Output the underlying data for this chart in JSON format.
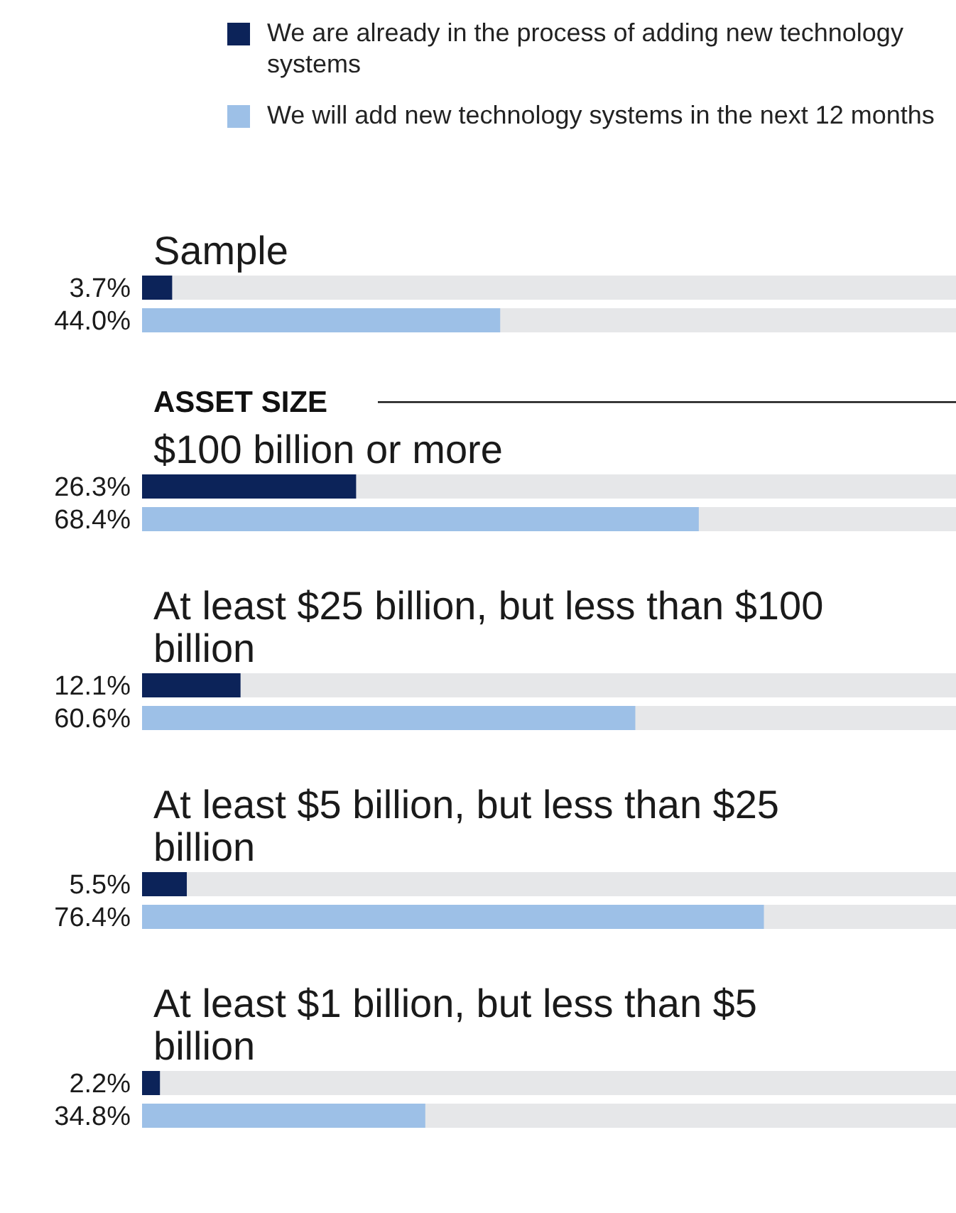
{
  "chart_data": {
    "type": "bar",
    "orientation": "horizontal",
    "categories": [
      "Sample",
      "$100 billion or more",
      "At least $25 billion, but less than $100 billion",
      "At least $5 billion, but less than $25 billion",
      "At least $1 billion, but less than $5 billion"
    ],
    "series": [
      {
        "name": "We are already in the process of adding new technology systems",
        "color": "#0c2359",
        "values": [
          3.7,
          26.3,
          12.1,
          5.5,
          2.2
        ],
        "value_labels": [
          "3.7%",
          "26.3%",
          "12.1%",
          "5.5%",
          "2.2%"
        ]
      },
      {
        "name": "We will add new technology systems in the next 12 months",
        "color": "#9dc0e7",
        "values": [
          44.0,
          68.4,
          60.6,
          76.4,
          34.8
        ],
        "value_labels": [
          "44.0%",
          "68.4%",
          "60.6%",
          "76.4%",
          "34.8%"
        ]
      }
    ],
    "xlim": [
      0,
      100
    ],
    "tick_labels": false,
    "legend": "top",
    "annotations": [
      "ASSET SIZE"
    ]
  }
}
